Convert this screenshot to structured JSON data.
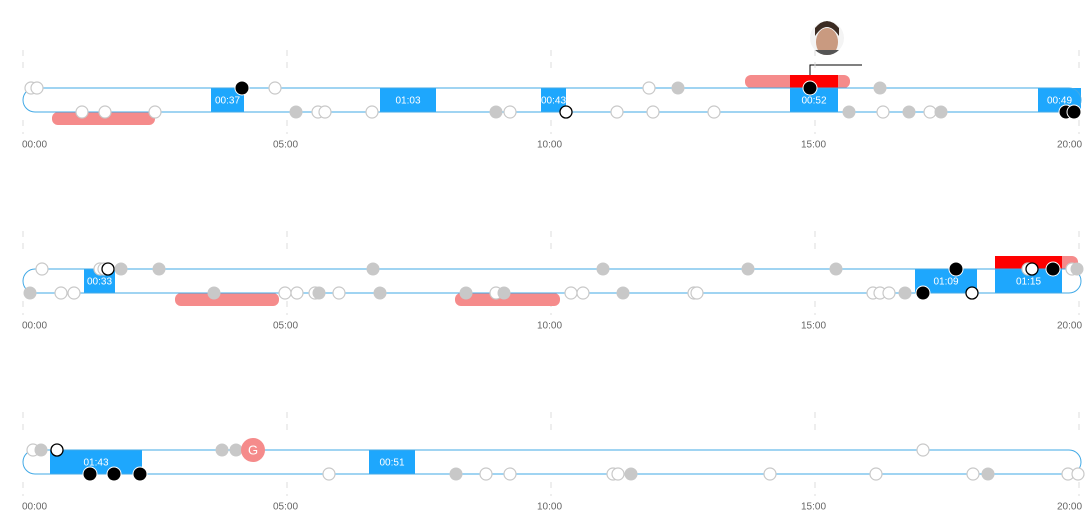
{
  "axis_labels": [
    "00:00",
    "05:00",
    "10:00",
    "15:00",
    "20:00"
  ],
  "rows": [
    {
      "blocks": [
        "00:37",
        "01:03",
        "00:43",
        "00:52",
        "00:49"
      ]
    },
    {
      "blocks": [
        "00:33",
        "01:09",
        "01:15"
      ]
    },
    {
      "blocks": [
        "01:43",
        "00:51"
      ],
      "marker": "G"
    }
  ]
}
